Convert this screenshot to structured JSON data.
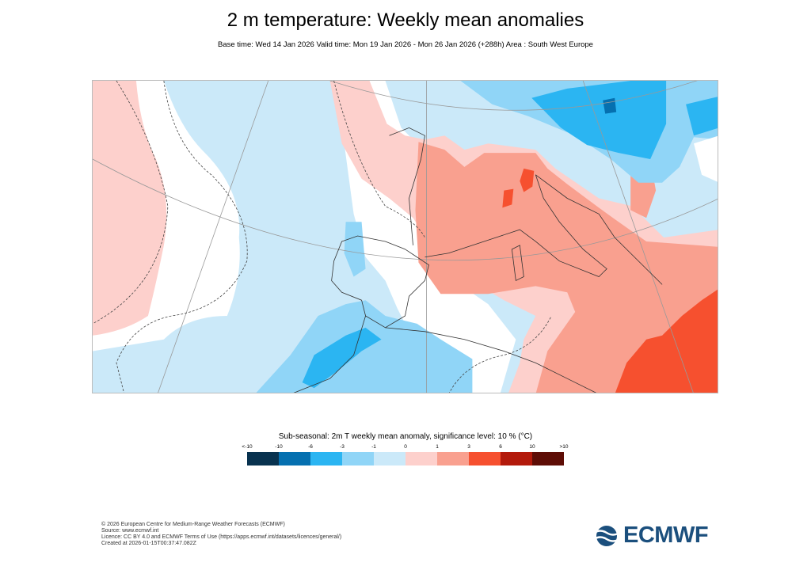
{
  "title": "2 m temperature: Weekly mean anomalies",
  "subtitle": "Base time: Wed 14 Jan 2026 Valid time: Mon 19 Jan 2026 - Mon 26 Jan 2026 (+288h) Area : South West Europe",
  "map": {
    "area": "South West Europe",
    "colors": {
      "ocean_base": "#cbe9f9",
      "neutral": "#ffffff"
    }
  },
  "legend": {
    "title": "Sub-seasonal: 2m T weekly mean anomaly, significance level: 10 % (°C)",
    "labels": [
      "<-10",
      "-10",
      "-6",
      "-3",
      "-1",
      "0",
      "1",
      "3",
      "6",
      "10",
      ">10"
    ],
    "colors": [
      "#08324f",
      "#0570b0",
      "#2bb5f2",
      "#90d5f7",
      "#cbe9f9",
      "#fdd0cc",
      "#f9a08f",
      "#f6502f",
      "#b31a0b",
      "#5e0d06"
    ]
  },
  "footer": {
    "copyright": "© 2026 European Centre for Medium-Range Weather Forecasts (ECMWF)",
    "source": "Source: www.ecmwf.int",
    "licence": "Licence: CC BY 4.0 and ECMWF Terms of Use (https://apps.ecmwf.int/datasets/licences/general/)",
    "created": "Created at 2026-01-15T00:37:47.082Z"
  },
  "logo": {
    "text": "ECMWF",
    "color": "#1b4f7d"
  }
}
